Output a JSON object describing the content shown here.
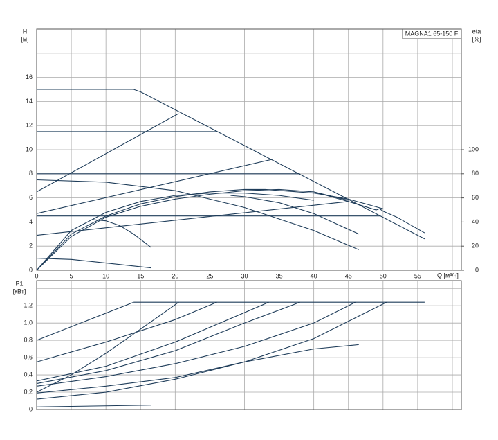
{
  "chart_data": [
    {
      "type": "line",
      "title": "MAGNA1 65-150 F",
      "y_label": "H",
      "y_unit": "[м]",
      "y2_label": "eta",
      "y2_unit": "[%]",
      "x_label": "Q [м³/ч]",
      "xlim": [
        0,
        61.3
      ],
      "xticks": [
        0,
        5,
        10,
        15,
        20,
        25,
        30,
        35,
        40,
        45,
        50,
        55
      ],
      "ylim": [
        0,
        20
      ],
      "yticks": [
        0,
        2,
        4,
        6,
        8,
        10,
        12,
        14,
        16
      ],
      "y2lim": [
        0,
        200
      ],
      "y2ticks": [
        0,
        20,
        40,
        60,
        80,
        100
      ],
      "grid": true,
      "color": "#1f3d5a",
      "series": [
        {
          "x": [
            0,
            14,
            15,
            56
          ],
          "values": [
            15,
            15,
            14.8,
            2.6
          ]
        },
        {
          "x": [
            40,
            45,
            49,
            49.5,
            50,
            52,
            56
          ],
          "values": [
            6.5,
            5.7,
            5.0,
            5.1,
            4.9,
            4.4,
            3.1
          ]
        },
        {
          "x": [
            0,
            20.5
          ],
          "values": [
            6.5,
            13
          ]
        },
        {
          "x": [
            0,
            26
          ],
          "values": [
            11.5,
            11.5
          ]
        },
        {
          "x": [
            0,
            34
          ],
          "values": [
            4.7,
            9.2
          ]
        },
        {
          "x": [
            0,
            38
          ],
          "values": [
            8,
            8
          ]
        },
        {
          "x": [
            0,
            49.6
          ],
          "values": [
            4.5,
            4.5
          ]
        },
        {
          "x": [
            0,
            45
          ],
          "values": [
            2.9,
            5.7
          ]
        },
        {
          "x": [
            0,
            10,
            20,
            30,
            40,
            46.5
          ],
          "values": [
            7.5,
            7.3,
            6.6,
            5.2,
            3.3,
            1.7
          ]
        },
        {
          "x": [
            0,
            5,
            10,
            16.5
          ],
          "values": [
            1,
            0.9,
            0.6,
            0.2
          ]
        },
        {
          "x": [
            8,
            10,
            12,
            14,
            16.5
          ],
          "values": [
            4.2,
            4.1,
            3.7,
            3.0,
            1.9
          ]
        },
        {
          "x": [
            28,
            30,
            35,
            40,
            46.5
          ],
          "values": [
            6.2,
            6.1,
            5.6,
            4.7,
            3.0
          ]
        },
        {
          "axis": "y2",
          "x": [
            0,
            5,
            10,
            15,
            20,
            25,
            30,
            33,
            40,
            45,
            50
          ],
          "values": [
            0,
            30,
            45,
            55,
            61,
            65,
            67,
            67,
            64,
            59,
            51
          ]
        },
        {
          "axis": "y2",
          "x": [
            0,
            5,
            10,
            15,
            20,
            25,
            30,
            35,
            40,
            45
          ],
          "values": [
            0,
            28,
            44,
            53,
            59,
            63,
            66,
            67,
            65,
            58
          ]
        },
        {
          "axis": "y2",
          "x": [
            0,
            5,
            10,
            15,
            20,
            25,
            30,
            35,
            40
          ],
          "values": [
            0,
            33,
            48,
            57,
            62,
            64,
            64,
            62,
            58
          ]
        }
      ]
    },
    {
      "type": "line",
      "y_label": "P1",
      "y_unit": "[кВт]",
      "xlim": [
        0,
        61.3
      ],
      "ylim": [
        0,
        1.49
      ],
      "yticks": [
        0,
        {
          "value": 0.2,
          "label": "0,2"
        },
        {
          "value": 0.4,
          "label": "0,4"
        },
        {
          "value": 0.6,
          "label": "0,6"
        },
        {
          "value": 0.8,
          "label": "0,8"
        },
        {
          "value": 1.0,
          "label": "1,0"
        },
        {
          "value": 1.2,
          "label": "1,2"
        }
      ],
      "grid": true,
      "color": "#1f3d5a",
      "series": [
        {
          "x": [
            14,
            56
          ],
          "values": [
            1.24,
            1.24
          ]
        },
        {
          "x": [
            0,
            7,
            14
          ],
          "values": [
            0.8,
            1.02,
            1.24
          ]
        },
        {
          "x": [
            0,
            10,
            20,
            26
          ],
          "values": [
            0.55,
            0.78,
            1.04,
            1.24
          ]
        },
        {
          "x": [
            0,
            5,
            10,
            15,
            20.5
          ],
          "values": [
            0.2,
            0.4,
            0.65,
            0.93,
            1.24
          ]
        },
        {
          "x": [
            0,
            10,
            20,
            30,
            38
          ],
          "values": [
            0.3,
            0.45,
            0.68,
            1.0,
            1.24
          ]
        },
        {
          "x": [
            0,
            10,
            20,
            30,
            40,
            46
          ],
          "values": [
            0.27,
            0.38,
            0.53,
            0.73,
            1.0,
            1.24
          ]
        },
        {
          "x": [
            0,
            10,
            20,
            30,
            40,
            50.5
          ],
          "values": [
            0.19,
            0.27,
            0.37,
            0.55,
            0.82,
            1.24
          ]
        },
        {
          "x": [
            0,
            10,
            20,
            33.5
          ],
          "values": [
            0.33,
            0.5,
            0.78,
            1.24
          ]
        },
        {
          "x": [
            0,
            10,
            20,
            30,
            40,
            46.5
          ],
          "values": [
            0.12,
            0.2,
            0.35,
            0.55,
            0.7,
            0.75
          ]
        },
        {
          "x": [
            0,
            16.5
          ],
          "values": [
            0.03,
            0.05
          ]
        }
      ]
    }
  ]
}
